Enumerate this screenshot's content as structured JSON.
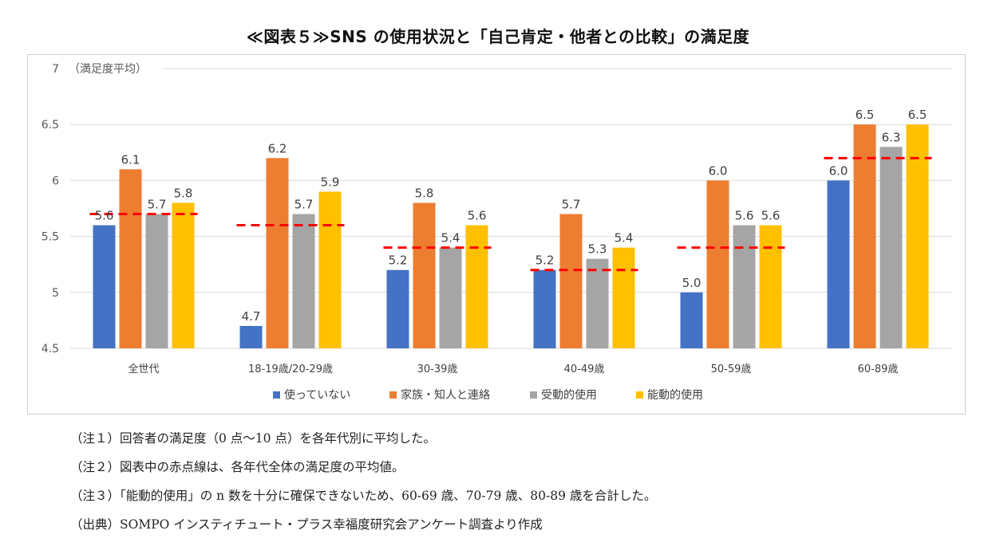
{
  "title": "≪図表５≫SNS の使用状況と「自己肯定・他者との比較」の満足度",
  "chart_data": {
    "type": "bar",
    "ylabel": "（満足度平均）",
    "ylim": [
      4.5,
      7
    ],
    "yticks": [
      "4.5",
      "5",
      "5.5",
      "6",
      "6.5",
      "7"
    ],
    "grid": true,
    "legend_position": "bottom",
    "categories": [
      "全世代",
      "18-19歳/20-29歳",
      "30-39歳",
      "40-49歳",
      "50-59歳",
      "60-89歳"
    ],
    "series": [
      {
        "name": "使っていない",
        "color": "#4472c4",
        "values": [
          5.6,
          4.7,
          5.2,
          5.2,
          5.0,
          6.0
        ],
        "labels": [
          "5.6",
          "4.7",
          "5.2",
          "5.2",
          "5.0",
          "6.0"
        ]
      },
      {
        "name": "家族・知人と連絡",
        "color": "#ed7d31",
        "values": [
          6.1,
          6.2,
          5.8,
          5.7,
          6.0,
          6.5
        ],
        "labels": [
          "6.1",
          "6.2",
          "5.8",
          "5.7",
          "6.0",
          "6.5"
        ]
      },
      {
        "name": "受動的使用",
        "color": "#a5a5a5",
        "values": [
          5.7,
          5.7,
          5.4,
          5.3,
          5.6,
          6.3
        ],
        "labels": [
          "5.7",
          "5.7",
          "5.4",
          "5.3",
          "5.6",
          "6.3"
        ]
      },
      {
        "name": "能動的使用",
        "color": "#ffc000",
        "values": [
          5.8,
          5.9,
          5.6,
          5.4,
          5.6,
          6.5
        ],
        "labels": [
          "5.8",
          "5.9",
          "5.6",
          "5.4",
          "5.6",
          "6.5"
        ]
      }
    ],
    "average_line": {
      "color": "#ff0000",
      "values": [
        5.7,
        5.6,
        5.4,
        5.2,
        5.4,
        6.2
      ]
    }
  },
  "notes": [
    "（注１）回答者の満足度（0 点～10 点）を各年代別に平均した。",
    "（注２）図表中の赤点線は、各年代全体の満足度の平均値。",
    "（注３）「能動的使用」の n 数を十分に確保できないため、60-69 歳、70-79 歳、80-89 歳を合計した。",
    "（出典）SOMPO インスティチュート・プラス幸福度研究会アンケート調査より作成"
  ]
}
